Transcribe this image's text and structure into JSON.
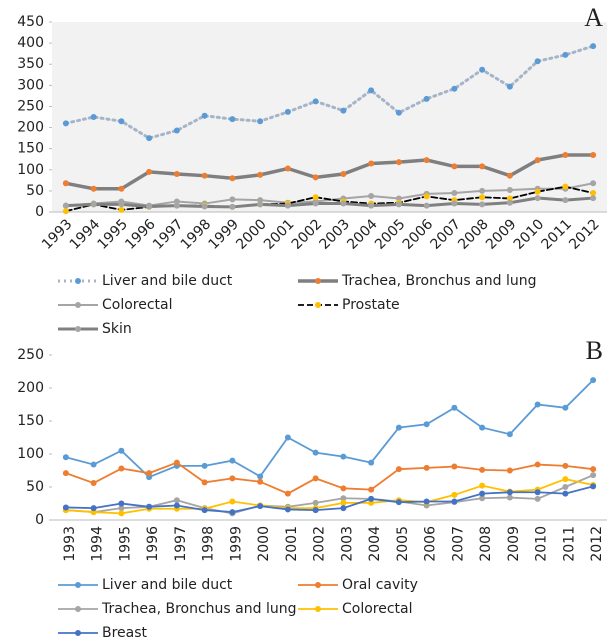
{
  "chart_data": [
    {
      "type": "line",
      "annotation": "A",
      "plot_background": "#f2f2f2",
      "categories": [
        "1993",
        "1994",
        "1995",
        "1996",
        "1997",
        "1998",
        "1999",
        "2000",
        "2001",
        "2002",
        "2003",
        "2004",
        "2005",
        "2006",
        "2007",
        "2008",
        "2009",
        "2010",
        "2011",
        "2012"
      ],
      "ylim": [
        0,
        450
      ],
      "yticks": [
        0,
        50,
        100,
        150,
        200,
        250,
        300,
        350,
        400,
        450
      ],
      "label_rotation": -45,
      "series": [
        {
          "name": "Liver and bile duct",
          "color": "#a6b4c8",
          "marker_color": "#5b9bd5",
          "dash": "dotted",
          "width": 3,
          "values": [
            210,
            225,
            215,
            175,
            193,
            228,
            220,
            215,
            237,
            262,
            240,
            288,
            235,
            268,
            292,
            337,
            297,
            357,
            372,
            393
          ]
        },
        {
          "name": "Trachea, Bronchus and lung",
          "color": "#7f7f7f",
          "marker_color": "#ed7d31",
          "dash": "solid",
          "width": 3.5,
          "values": [
            68,
            55,
            55,
            95,
            90,
            86,
            80,
            88,
            103,
            82,
            90,
            115,
            118,
            123,
            108,
            108,
            86,
            123,
            135,
            135
          ]
        },
        {
          "name": "Colorectal",
          "color": "#a5a5a5",
          "marker_color": "#a5a5a5",
          "dash": "solid",
          "width": 2,
          "values": [
            15,
            20,
            25,
            15,
            25,
            20,
            30,
            28,
            22,
            25,
            32,
            38,
            32,
            43,
            45,
            50,
            52,
            55,
            55,
            68
          ]
        },
        {
          "name": "Prostate",
          "color": "#000000",
          "marker_color": "#ffc000",
          "dash": "dashed",
          "width": 1.8,
          "values": [
            2,
            18,
            5,
            12,
            15,
            15,
            12,
            18,
            20,
            35,
            25,
            20,
            22,
            37,
            28,
            35,
            32,
            48,
            60,
            45
          ]
        },
        {
          "name": "Skin",
          "color": "#808080",
          "marker_color": "#a5a5a5",
          "dash": "solid",
          "width": 3,
          "values": [
            15,
            18,
            18,
            13,
            15,
            13,
            12,
            18,
            15,
            20,
            20,
            15,
            18,
            15,
            20,
            18,
            22,
            33,
            28,
            33
          ]
        }
      ]
    },
    {
      "type": "line",
      "annotation": "B",
      "plot_background": "#ffffff",
      "categories": [
        "1993",
        "1994",
        "1995",
        "1996",
        "1997",
        "1998",
        "1999",
        "2000",
        "2001",
        "2002",
        "2003",
        "2004",
        "2005",
        "2006",
        "2007",
        "2008",
        "2009",
        "2010",
        "2011",
        "2012"
      ],
      "ylim": [
        0,
        250
      ],
      "yticks": [
        0,
        50,
        100,
        150,
        200,
        250
      ],
      "label_rotation": -90,
      "series": [
        {
          "name": "Liver and bile duct",
          "color": "#5b9bd5",
          "marker_color": "#5b9bd5",
          "dash": "solid",
          "width": 1.8,
          "values": [
            95,
            84,
            105,
            65,
            82,
            82,
            90,
            66,
            125,
            102,
            96,
            87,
            140,
            145,
            170,
            140,
            130,
            175,
            170,
            212
          ]
        },
        {
          "name": "Oral cavity",
          "color": "#ed7d31",
          "marker_color": "#ed7d31",
          "dash": "solid",
          "width": 1.8,
          "values": [
            71,
            56,
            78,
            71,
            87,
            57,
            63,
            58,
            40,
            63,
            48,
            46,
            77,
            79,
            81,
            76,
            75,
            84,
            82,
            77
          ]
        },
        {
          "name": "Trachea, Bronchus and lung",
          "color": "#a5a5a5",
          "marker_color": "#a5a5a5",
          "dash": "solid",
          "width": 1.8,
          "values": [
            15,
            12,
            18,
            20,
            30,
            18,
            10,
            22,
            20,
            26,
            33,
            32,
            28,
            22,
            27,
            33,
            34,
            32,
            50,
            68
          ]
        },
        {
          "name": "Colorectal",
          "color": "#ffc000",
          "marker_color": "#ffc000",
          "dash": "solid",
          "width": 1.8,
          "values": [
            15,
            12,
            10,
            17,
            17,
            17,
            28,
            22,
            18,
            18,
            26,
            26,
            30,
            27,
            38,
            52,
            43,
            46,
            62,
            53
          ]
        },
        {
          "name": "Breast",
          "color": "#4472c4",
          "marker_color": "#4472c4",
          "dash": "solid",
          "width": 1.8,
          "values": [
            19,
            18,
            25,
            20,
            22,
            15,
            12,
            21,
            16,
            15,
            18,
            32,
            27,
            28,
            28,
            40,
            42,
            42,
            40,
            51
          ]
        }
      ]
    }
  ]
}
